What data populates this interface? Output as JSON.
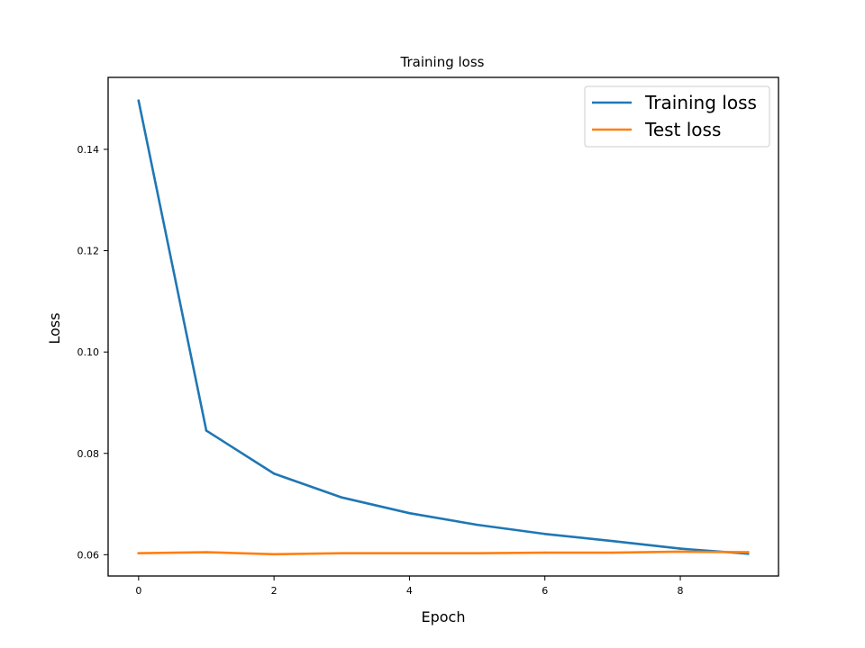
{
  "chart_data": {
    "type": "line",
    "title": "Training loss",
    "xlabel": "Epoch",
    "ylabel": "Loss",
    "xlim": [
      -0.45,
      9.45
    ],
    "ylim": [
      0.0558,
      0.1542
    ],
    "xticks": [
      0,
      2,
      4,
      6,
      8
    ],
    "yticks": [
      0.06,
      0.08,
      0.1,
      0.12,
      0.14
    ],
    "xtick_labels": [
      "0",
      "2",
      "4",
      "6",
      "8"
    ],
    "ytick_labels": [
      "0.06",
      "0.08",
      "0.10",
      "0.12",
      "0.14"
    ],
    "grid": false,
    "legend_position": "top-right",
    "x": [
      0,
      1,
      2,
      3,
      4,
      5,
      6,
      7,
      8,
      9
    ],
    "series": [
      {
        "name": "Training loss",
        "color": "#1f77b4",
        "values": [
          0.1496,
          0.0845,
          0.076,
          0.0713,
          0.0682,
          0.0659,
          0.0641,
          0.0627,
          0.0612,
          0.0602
        ]
      },
      {
        "name": "Test loss",
        "color": "#ff7f0e",
        "values": [
          0.0603,
          0.0605,
          0.0601,
          0.0603,
          0.0603,
          0.0603,
          0.0604,
          0.0604,
          0.0606,
          0.0605
        ]
      }
    ]
  }
}
